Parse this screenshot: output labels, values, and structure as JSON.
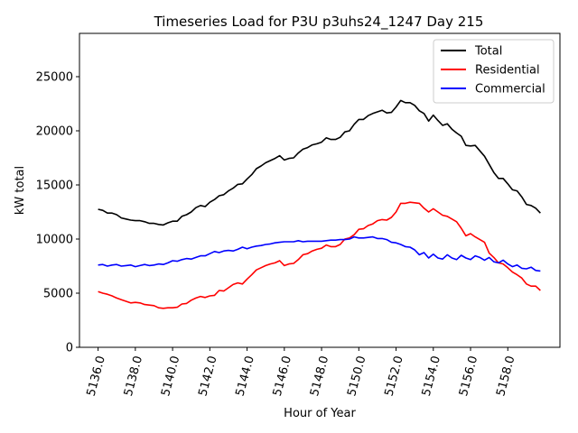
{
  "chart_data": {
    "type": "line",
    "title": "Timeseries Load for P3U p3uhs24_1247  Day 215",
    "xlabel": "Hour of Year",
    "ylabel": "kW total",
    "xlim": [
      5135.0,
      5160.8
    ],
    "ylim": [
      0,
      29000
    ],
    "x_ticks": [
      5136.0,
      5138.0,
      5140.0,
      5142.0,
      5144.0,
      5146.0,
      5148.0,
      5150.0,
      5152.0,
      5154.0,
      5156.0,
      5158.0
    ],
    "x_tick_labels": [
      "5136.0",
      "5138.0",
      "5140.0",
      "5142.0",
      "5144.0",
      "5146.0",
      "5148.0",
      "5150.0",
      "5152.0",
      "5154.0",
      "5156.0",
      "5158.0"
    ],
    "y_ticks": [
      0,
      5000,
      10000,
      15000,
      20000,
      25000
    ],
    "y_tick_labels": [
      "0",
      "5000",
      "10000",
      "15000",
      "20000",
      "25000"
    ],
    "legend_position": "top-right",
    "x": [
      5136.0,
      5136.25,
      5136.5,
      5136.75,
      5137.0,
      5137.25,
      5137.5,
      5137.75,
      5138.0,
      5138.25,
      5138.5,
      5138.75,
      5139.0,
      5139.25,
      5139.5,
      5139.75,
      5140.0,
      5140.25,
      5140.5,
      5140.75,
      5141.0,
      5141.25,
      5141.5,
      5141.75,
      5142.0,
      5142.25,
      5142.5,
      5142.75,
      5143.0,
      5143.25,
      5143.5,
      5143.75,
      5144.0,
      5144.25,
      5144.5,
      5144.75,
      5145.0,
      5145.25,
      5145.5,
      5145.75,
      5146.0,
      5146.25,
      5146.5,
      5146.75,
      5147.0,
      5147.25,
      5147.5,
      5147.75,
      5148.0,
      5148.25,
      5148.5,
      5148.75,
      5149.0,
      5149.25,
      5149.5,
      5149.75,
      5150.0,
      5150.25,
      5150.5,
      5150.75,
      5151.0,
      5151.25,
      5151.5,
      5151.75,
      5152.0,
      5152.25,
      5152.5,
      5152.75,
      5153.0,
      5153.25,
      5153.5,
      5153.75,
      5154.0,
      5154.25,
      5154.5,
      5154.75,
      5155.0,
      5155.25,
      5155.5,
      5155.75,
      5156.0,
      5156.25,
      5156.5,
      5156.75,
      5157.0,
      5157.25,
      5157.5,
      5157.75,
      5158.0,
      5158.25,
      5158.5,
      5158.75,
      5159.0,
      5159.25,
      5159.5,
      5159.75
    ],
    "series": [
      {
        "name": "Total",
        "color": "#000000",
        "values": [
          12750,
          12650,
          12400,
          12400,
          12250,
          11950,
          11850,
          11750,
          11700,
          11700,
          11600,
          11450,
          11450,
          11350,
          11300,
          11500,
          11650,
          11650,
          12100,
          12250,
          12500,
          12900,
          13100,
          13000,
          13400,
          13650,
          14000,
          14100,
          14450,
          14700,
          15050,
          15100,
          15550,
          15950,
          16500,
          16750,
          17050,
          17250,
          17450,
          17700,
          17300,
          17450,
          17500,
          17950,
          18300,
          18450,
          18700,
          18800,
          18950,
          19350,
          19200,
          19200,
          19400,
          19900,
          20000,
          20600,
          21050,
          21050,
          21400,
          21600,
          21750,
          21900,
          21650,
          21700,
          22200,
          22800,
          22600,
          22600,
          22350,
          21850,
          21600,
          20900,
          21450,
          20950,
          20500,
          20650,
          20150,
          19800,
          19500,
          18650,
          18600,
          18650,
          18150,
          17650,
          16900,
          16150,
          15600,
          15600,
          15100,
          14550,
          14450,
          13900,
          13200,
          13100,
          12850,
          12400
        ]
      },
      {
        "name": "Residential",
        "color": "#ff0000",
        "values": [
          5150,
          5000,
          4900,
          4750,
          4550,
          4400,
          4250,
          4100,
          4150,
          4100,
          3950,
          3900,
          3850,
          3650,
          3600,
          3650,
          3650,
          3700,
          4000,
          4050,
          4350,
          4550,
          4700,
          4600,
          4750,
          4800,
          5250,
          5200,
          5500,
          5800,
          5950,
          5850,
          6300,
          6700,
          7150,
          7350,
          7550,
          7700,
          7800,
          8000,
          7550,
          7700,
          7750,
          8100,
          8550,
          8650,
          8900,
          9050,
          9150,
          9450,
          9300,
          9300,
          9500,
          10000,
          10100,
          10400,
          10900,
          10950,
          11250,
          11400,
          11700,
          11800,
          11750,
          12000,
          12500,
          13300,
          13300,
          13400,
          13350,
          13300,
          12850,
          12500,
          12800,
          12500,
          12200,
          12100,
          11850,
          11600,
          11000,
          10300,
          10500,
          10200,
          9950,
          9700,
          8700,
          8300,
          7800,
          7700,
          7350,
          6950,
          6700,
          6400,
          5850,
          5650,
          5650,
          5250
        ]
      },
      {
        "name": "Commercial",
        "color": "#0000ff",
        "values": [
          7600,
          7650,
          7500,
          7600,
          7650,
          7500,
          7550,
          7600,
          7450,
          7550,
          7650,
          7550,
          7600,
          7700,
          7650,
          7800,
          8000,
          7950,
          8100,
          8200,
          8150,
          8300,
          8450,
          8450,
          8650,
          8850,
          8750,
          8900,
          8950,
          8900,
          9050,
          9250,
          9100,
          9250,
          9350,
          9400,
          9500,
          9550,
          9650,
          9700,
          9750,
          9750,
          9750,
          9850,
          9750,
          9800,
          9800,
          9800,
          9800,
          9850,
          9900,
          9900,
          9950,
          9950,
          10000,
          10200,
          10100,
          10100,
          10150,
          10200,
          10050,
          10050,
          9950,
          9700,
          9650,
          9500,
          9300,
          9250,
          9000,
          8550,
          8750,
          8250,
          8600,
          8250,
          8150,
          8550,
          8250,
          8100,
          8500,
          8250,
          8100,
          8450,
          8300,
          8050,
          8300,
          7900,
          7800,
          8050,
          7700,
          7450,
          7600,
          7300,
          7250,
          7400,
          7100,
          7050
        ]
      }
    ]
  }
}
